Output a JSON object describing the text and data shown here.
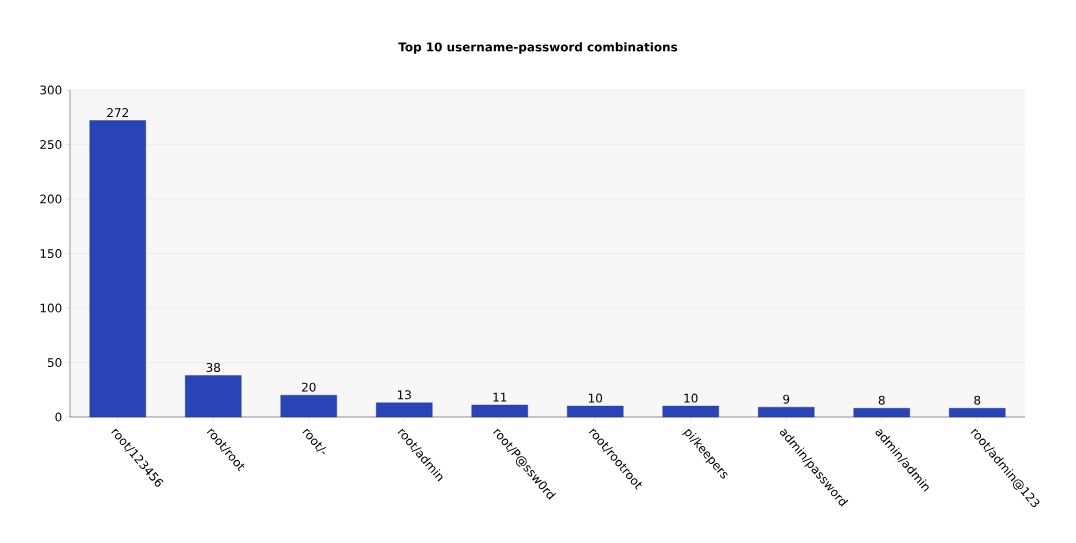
{
  "chart_data": {
    "type": "bar",
    "title": "Top 10 username-password combinations",
    "categories": [
      "root/123456",
      "root/root",
      "root/-",
      "root/admin",
      "root/P@ssw0rd",
      "root/rootroot",
      "pi/keepers",
      "admin/password",
      "admin/admin",
      "root/admin@123"
    ],
    "values": [
      272,
      38,
      20,
      13,
      11,
      10,
      10,
      9,
      8,
      8
    ],
    "color": "#2b44b5",
    "data_labels": true,
    "grid": "y",
    "ylim": [
      0,
      300
    ],
    "yticks": [
      0,
      50,
      100,
      150,
      200,
      250,
      300
    ]
  }
}
